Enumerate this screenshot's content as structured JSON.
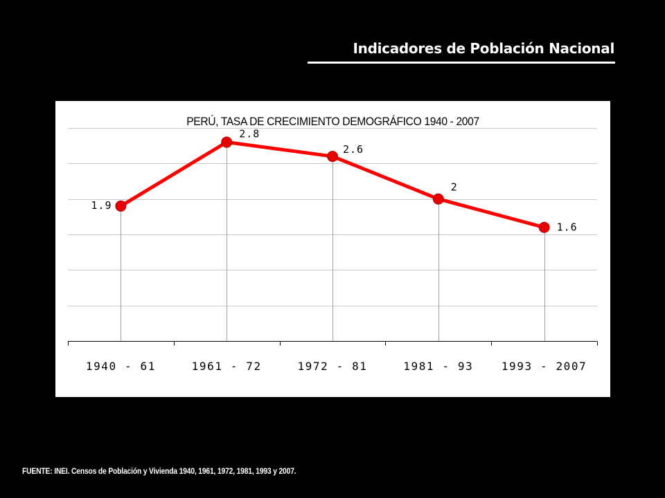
{
  "slide": {
    "title": "Indicadores de Población Nacional",
    "source": "FUENTE: INEI. Censos de Población y Vivienda 1940, 1961, 1972, 1981, 1993 y 2007."
  },
  "colors": {
    "background": "#000000",
    "panel": "#ffffff",
    "series": "#ff0000",
    "marker": "#e80000",
    "grid": "#c8c8c8"
  },
  "chart_data": {
    "type": "line",
    "title": "PERÚ, TASA DE CRECIMIENTO DEMOGRÁFICO 1940 - 2007",
    "categories": [
      "1940 - 61",
      "1961 - 72",
      "1972 - 81",
      "1981 - 93",
      "1993 - 2007"
    ],
    "values": [
      1.9,
      2.8,
      2.6,
      2,
      1.6
    ],
    "data_labels": [
      "1.9",
      "2.8",
      "2.6",
      "2",
      "1.6"
    ],
    "ylim": [
      0,
      3
    ],
    "y_tick_step": 0.5,
    "grid": true,
    "drop_lines": true,
    "legend": "none"
  }
}
